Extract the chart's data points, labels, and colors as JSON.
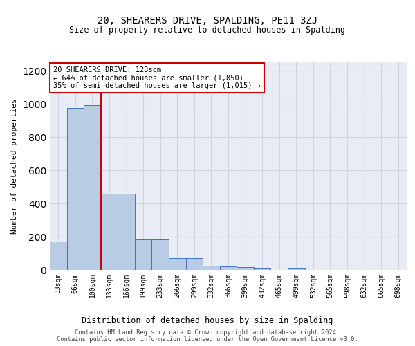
{
  "title": "20, SHEARERS DRIVE, SPALDING, PE11 3ZJ",
  "subtitle": "Size of property relative to detached houses in Spalding",
  "xlabel": "Distribution of detached houses by size in Spalding",
  "ylabel": "Number of detached properties",
  "bar_labels": [
    "33sqm",
    "66sqm",
    "100sqm",
    "133sqm",
    "166sqm",
    "199sqm",
    "233sqm",
    "266sqm",
    "299sqm",
    "332sqm",
    "366sqm",
    "399sqm",
    "432sqm",
    "465sqm",
    "499sqm",
    "532sqm",
    "565sqm",
    "598sqm",
    "632sqm",
    "665sqm",
    "698sqm"
  ],
  "bar_heights": [
    170,
    975,
    990,
    460,
    460,
    185,
    185,
    70,
    70,
    25,
    20,
    15,
    10,
    0,
    10,
    0,
    0,
    0,
    0,
    0,
    0
  ],
  "bar_color": "#b8cce4",
  "bar_edge_color": "#4472c4",
  "vline_x": 2.5,
  "vline_color": "#cc0000",
  "annotation_line1": "20 SHEARERS DRIVE: 123sqm",
  "annotation_line2": "← 64% of detached houses are smaller (1,850)",
  "annotation_line3": "35% of semi-detached houses are larger (1,015) →",
  "annotation_box_facecolor": "#ffffff",
  "annotation_box_edgecolor": "#cc0000",
  "ylim": [
    0,
    1250
  ],
  "yticks": [
    0,
    200,
    400,
    600,
    800,
    1000,
    1200
  ],
  "grid_color": "#cdd5e0",
  "background_color": "#e8edf5",
  "footer_line1": "Contains HM Land Registry data © Crown copyright and database right 2024.",
  "footer_line2": "Contains public sector information licensed under the Open Government Licence v3.0."
}
